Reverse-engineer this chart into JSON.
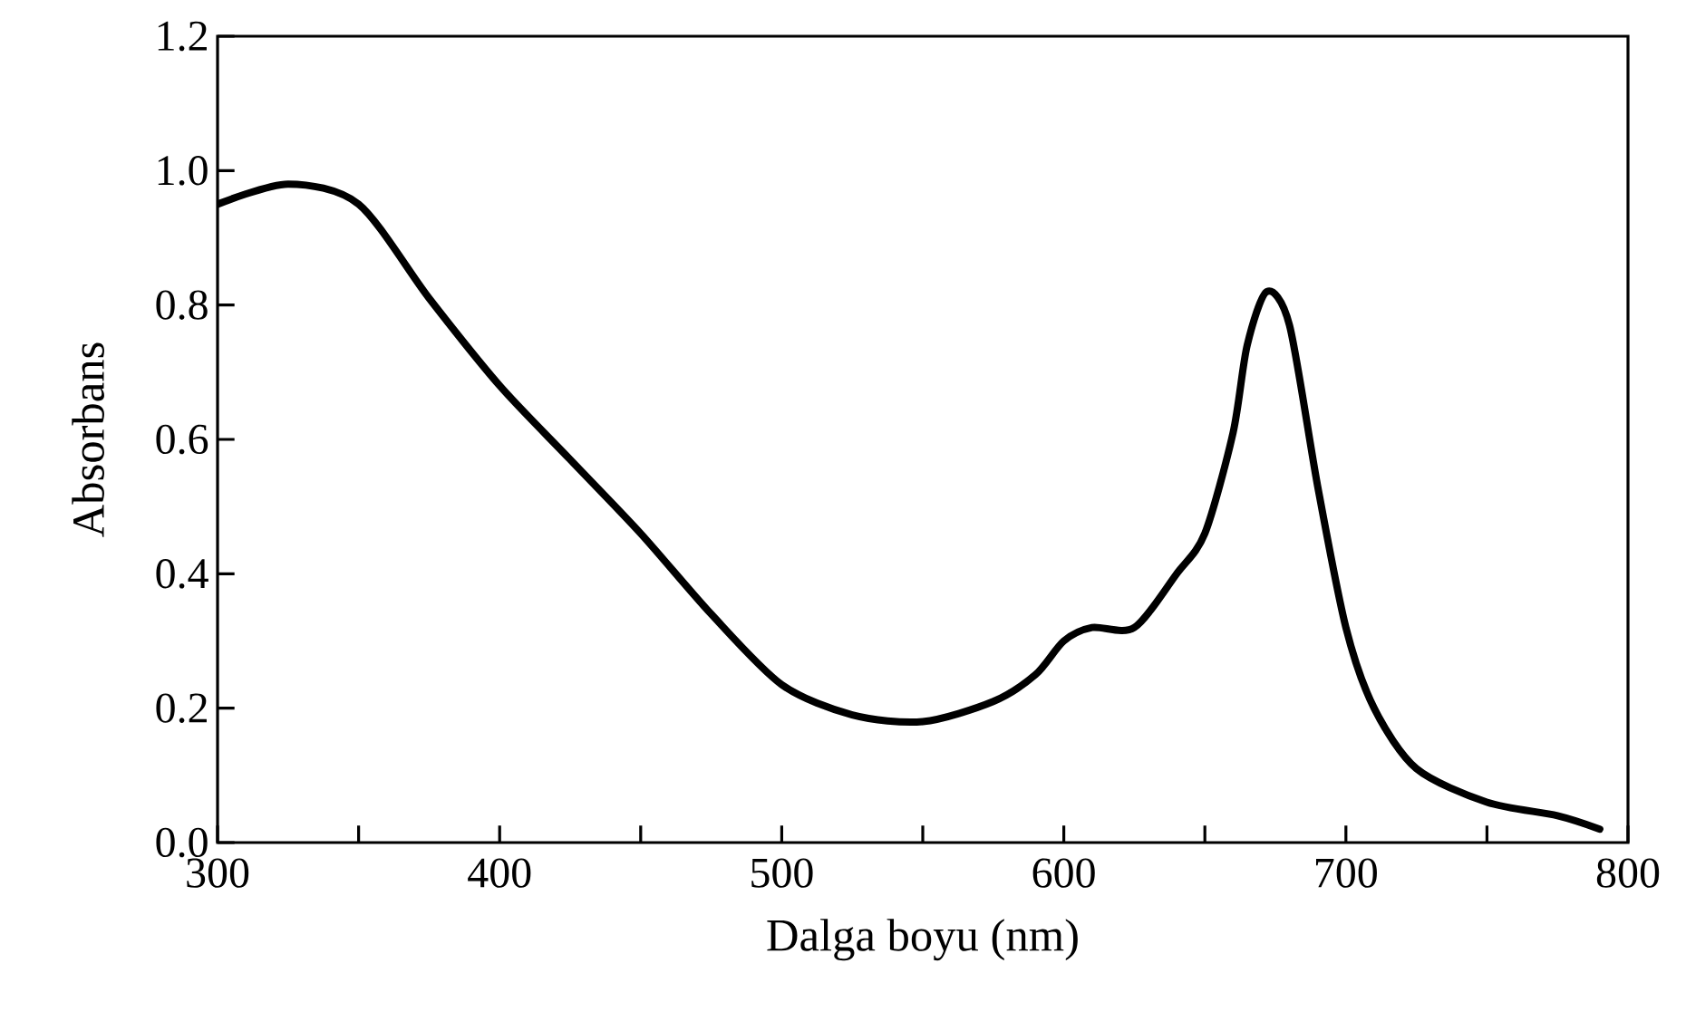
{
  "chart_data": {
    "type": "line",
    "xlabel": "Dalga boyu (nm)",
    "ylabel": "Absorbans",
    "x": [
      300,
      325,
      350,
      375,
      400,
      425,
      450,
      475,
      500,
      525,
      550,
      575,
      590,
      600,
      610,
      625,
      640,
      650,
      660,
      665,
      672,
      680,
      690,
      700,
      710,
      725,
      750,
      775,
      790
    ],
    "series": [
      {
        "color": "#000000",
        "values": [
          0.95,
          0.98,
          0.95,
          0.81,
          0.68,
          0.57,
          0.46,
          0.34,
          0.235,
          0.19,
          0.18,
          0.21,
          0.25,
          0.3,
          0.32,
          0.32,
          0.4,
          0.46,
          0.61,
          0.74,
          0.82,
          0.77,
          0.53,
          0.32,
          0.2,
          0.11,
          0.06,
          0.04,
          0.02
        ]
      }
    ],
    "xlim": [
      300,
      800
    ],
    "ylim": [
      0,
      1.2
    ],
    "xticks": [
      300,
      {
        "value": 350,
        "label": null
      },
      400,
      {
        "value": 450,
        "label": null
      },
      500,
      {
        "value": 550,
        "label": null
      },
      600,
      {
        "value": 650,
        "label": null
      },
      700,
      {
        "value": 750,
        "label": null
      },
      800
    ],
    "yticks": [
      {
        "value": 0,
        "label": "0.0"
      },
      0.2,
      0.4,
      0.6,
      0.8,
      {
        "value": 1,
        "label": "1.0"
      },
      1.2
    ],
    "marker": "none",
    "line_style": "solid"
  }
}
